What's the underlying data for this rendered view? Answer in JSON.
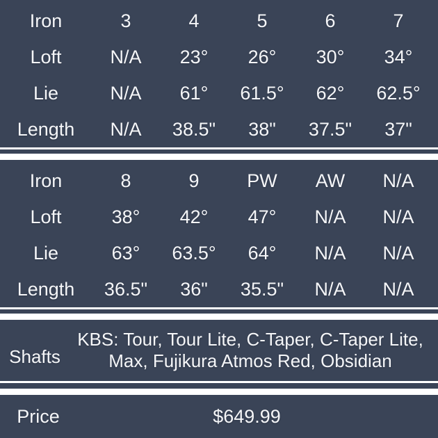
{
  "colors": {
    "background": "#3A4457",
    "text": "#F5F6F8",
    "divider": "#FFFFFF"
  },
  "tables": [
    {
      "rows": [
        {
          "label": "Iron",
          "values": [
            "3",
            "4",
            "5",
            "6",
            "7"
          ]
        },
        {
          "label": "Loft",
          "values": [
            "N/A",
            "23°",
            "26°",
            "30°",
            "34°"
          ]
        },
        {
          "label": "Lie",
          "values": [
            "N/A",
            "61°",
            "61.5°",
            "62°",
            "62.5°"
          ]
        },
        {
          "label": "Length",
          "values": [
            "N/A",
            "38.5\"",
            "38\"",
            "37.5\"",
            "37\""
          ]
        }
      ]
    },
    {
      "rows": [
        {
          "label": "Iron",
          "values": [
            "8",
            "9",
            "PW",
            "AW",
            "N/A"
          ]
        },
        {
          "label": "Loft",
          "values": [
            "38°",
            "42°",
            "47°",
            "N/A",
            "N/A"
          ]
        },
        {
          "label": "Lie",
          "values": [
            "63°",
            "63.5°",
            "64°",
            "N/A",
            "N/A"
          ]
        },
        {
          "label": "Length",
          "values": [
            "36.5\"",
            "36\"",
            "35.5\"",
            "N/A",
            "N/A"
          ]
        }
      ]
    }
  ],
  "shafts": {
    "label": "Shafts",
    "lines": [
      "KBS: Tour, Tour Lite, C-Taper, C-Taper Lite,",
      "Max, Fujikura Atmos Red, Obsidian"
    ]
  },
  "price": {
    "label": "Price",
    "value": "$649.99"
  },
  "chart_data": [
    {
      "type": "table",
      "title": "Iron specifications (3-7)",
      "columns": [
        "Iron",
        "3",
        "4",
        "5",
        "6",
        "7"
      ],
      "rows": [
        [
          "Loft",
          "N/A",
          "23°",
          "26°",
          "30°",
          "34°"
        ],
        [
          "Lie",
          "N/A",
          "61°",
          "61.5°",
          "62°",
          "62.5°"
        ],
        [
          "Length",
          "N/A",
          "38.5\"",
          "38\"",
          "37.5\"",
          "37\""
        ]
      ]
    },
    {
      "type": "table",
      "title": "Iron specifications (8-AW)",
      "columns": [
        "Iron",
        "8",
        "9",
        "PW",
        "AW",
        "N/A"
      ],
      "rows": [
        [
          "Loft",
          "38°",
          "42°",
          "47°",
          "N/A",
          "N/A"
        ],
        [
          "Lie",
          "63°",
          "63.5°",
          "64°",
          "N/A",
          "N/A"
        ],
        [
          "Length",
          "36.5\"",
          "36\"",
          "35.5\"",
          "N/A",
          "N/A"
        ]
      ]
    },
    {
      "type": "table",
      "title": "Shafts and price",
      "rows": [
        [
          "Shafts",
          "KBS: Tour, Tour Lite, C-Taper, C-Taper Lite, Max, Fujikura Atmos Red, Obsidian"
        ],
        [
          "Price",
          "$649.99"
        ]
      ]
    }
  ]
}
